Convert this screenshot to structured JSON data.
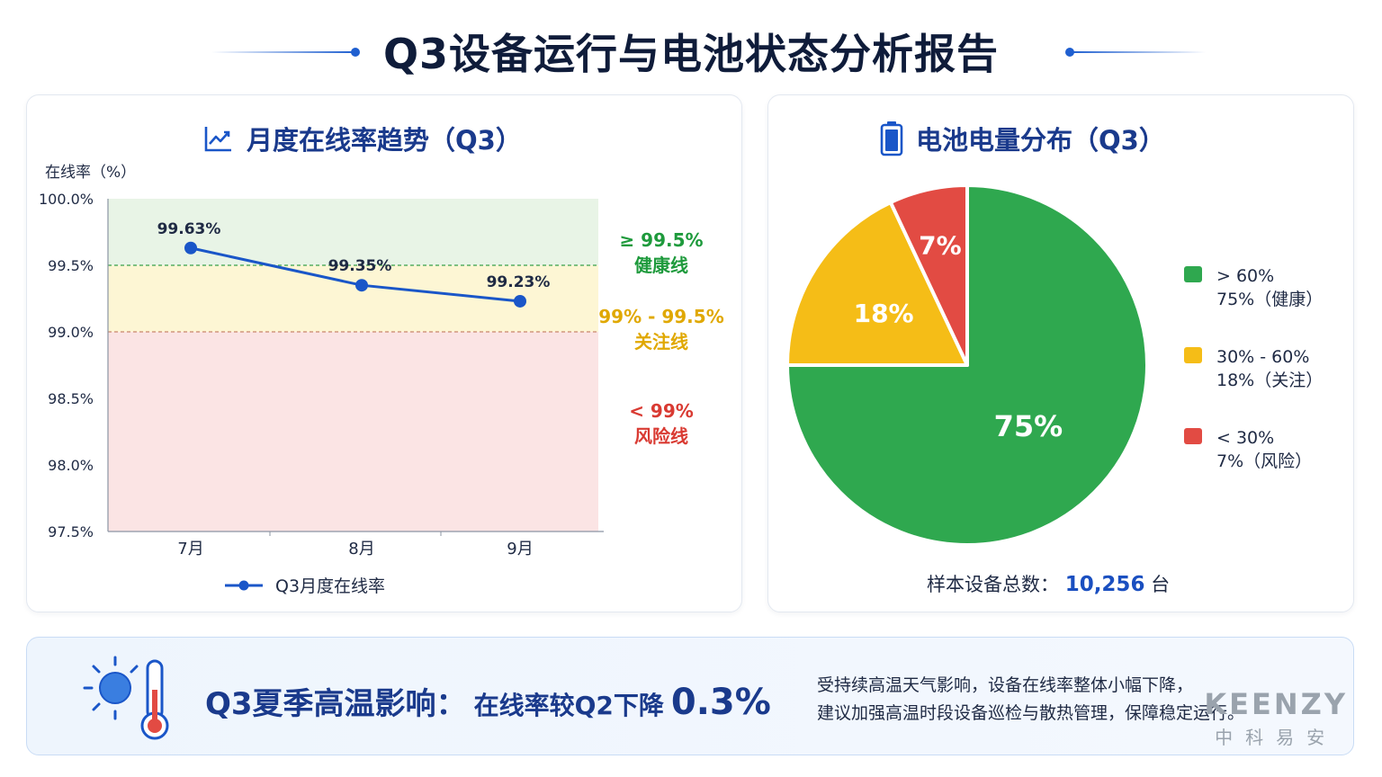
{
  "title": "Q3设备运行与电池状态分析报告",
  "line_panel": {
    "title": "月度在线率趋势（Q3）",
    "y_unit_label": "在线率（%）",
    "legend_label": "Q3月度在线率",
    "zones": [
      {
        "range": "≥ 99.5%",
        "name": "健康线",
        "color": "#1e9a3c"
      },
      {
        "range": "99% - 99.5%",
        "name": "关注线",
        "color": "#e0a800"
      },
      {
        "range": "< 99%",
        "name": "风险线",
        "color": "#d93a32"
      }
    ]
  },
  "pie_panel": {
    "title": "电池电量分布（Q3）",
    "sample_label": "样本设备总数：",
    "sample_value": "10,256",
    "sample_unit": "台",
    "legend": [
      {
        "line1": "> 60%",
        "line2": "75%（健康）",
        "color": "#2fa84f"
      },
      {
        "line1": "30% - 60%",
        "line2": "18%（关注）",
        "color": "#f5bd17"
      },
      {
        "line1": "< 30%",
        "line2": "7%（风险）",
        "color": "#e24b43"
      }
    ]
  },
  "banner": {
    "headline": "Q3夏季高温影响：",
    "sub": "在线率较Q2下降",
    "value": "0.3%",
    "line1": "受持续高温天气影响，设备在线率整体小幅下降，",
    "line2": "建议加强高温时段设备巡检与散热管理，保障稳定运行。"
  },
  "watermark": {
    "brand": "KEENZY",
    "cn": "中科易安"
  },
  "chart_data": [
    {
      "type": "line",
      "x": [
        "7月",
        "8月",
        "9月"
      ],
      "series": [
        {
          "name": "Q3月度在线率",
          "values": [
            99.63,
            99.35,
            99.23
          ],
          "color": "#1a56c8"
        }
      ],
      "data_labels": [
        "99.63%",
        "99.35%",
        "99.23%"
      ],
      "ylabel": "在线率（%）",
      "ylim": [
        97.5,
        100.0
      ],
      "yticks": [
        "97.5%",
        "98.0%",
        "98.5%",
        "99.0%",
        "99.5%",
        "100.0%"
      ],
      "ytick_values": [
        97.5,
        98.0,
        98.5,
        99.0,
        99.5,
        100.0
      ],
      "bands": [
        {
          "from": 99.5,
          "to": 100.0,
          "color": "#e8f4e6"
        },
        {
          "from": 99.0,
          "to": 99.5,
          "color": "#fdf6d4"
        },
        {
          "from": 97.5,
          "to": 99.0,
          "color": "#fbe4e4"
        }
      ],
      "threshold_lines": [
        {
          "value": 99.5,
          "color": "#3aa14a"
        },
        {
          "value": 99.0,
          "color": "#c9876c"
        }
      ]
    },
    {
      "type": "pie",
      "categories": [
        "> 60%",
        "30% - 60%",
        "< 30%"
      ],
      "values": [
        75,
        18,
        7
      ],
      "labels": [
        "75%",
        "18%",
        "7%"
      ],
      "colors": [
        "#2fa84f",
        "#f5bd17",
        "#e24b43"
      ]
    }
  ]
}
